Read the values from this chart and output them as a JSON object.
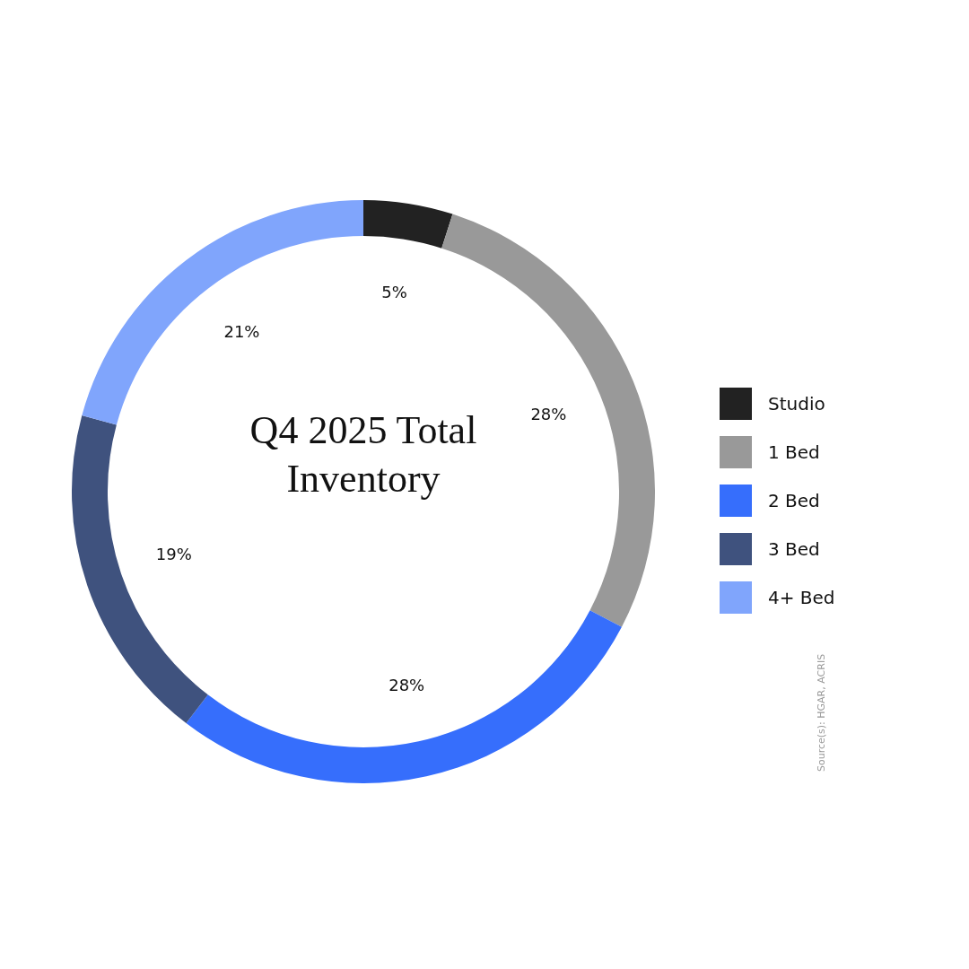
{
  "chart_data": {
    "type": "donut",
    "title": "Q4 2025 Total Inventory",
    "categories": [
      "Studio",
      "1 Bed",
      "2 Bed",
      "3 Bed",
      "4+ Bed"
    ],
    "values": [
      5,
      28,
      28,
      19,
      21
    ],
    "value_labels": [
      "5%",
      "28%",
      "28%",
      "19%",
      "21%"
    ],
    "colors": [
      "#222222",
      "#999999",
      "#366efc",
      "#3f527e",
      "#80a5fc"
    ],
    "legend": "right",
    "annotations": [
      "Source(s): HGAR, ACRIS"
    ]
  }
}
